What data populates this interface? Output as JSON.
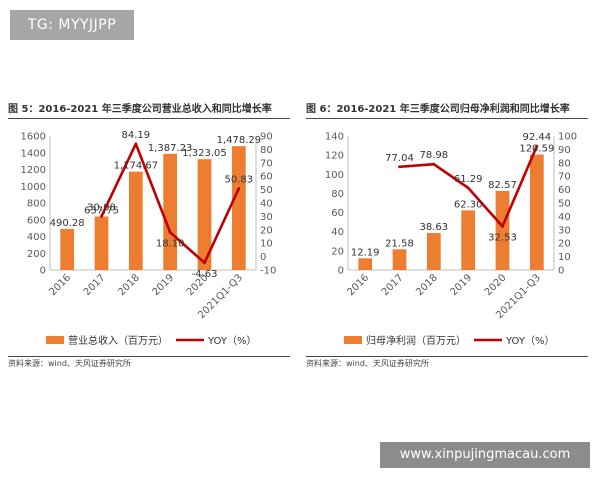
{
  "watermark_top": "TG: MYYJJPP",
  "watermark_bottom": "www.xinpujingmacau.com",
  "colors": {
    "bar": "#ed7d31",
    "line": "#c00000",
    "axis_text": "#595959",
    "text": "#333333"
  },
  "chart_data": [
    {
      "type": "bar",
      "title": "图 5：2016-2021 年三季度公司营业总收入和同比增长率",
      "categories": [
        "2016",
        "2017",
        "2018",
        "2019",
        "2020",
        "2021Q1-Q3"
      ],
      "series": [
        {
          "name": "营业总收入（百万元）",
          "type": "bar",
          "axis": "left",
          "values": [
            490.28,
            637.75,
            1174.67,
            1387.23,
            1323.05,
            1478.29
          ],
          "labels": [
            "490.28",
            "637.75",
            "1,174.67",
            "1,387.23",
            "1,323.05",
            "1,478.29"
          ]
        },
        {
          "name": "YOY（%）",
          "type": "line",
          "axis": "right",
          "values": [
            null,
            30.08,
            84.19,
            18.1,
            -4.63,
            50.83
          ],
          "labels": [
            "",
            "30.08",
            "84.19",
            "18.10",
            "-4.63",
            "50.83"
          ]
        }
      ],
      "ylim_left": [
        0,
        1600
      ],
      "yticks_left": [
        "0",
        "200",
        "400",
        "600",
        "800",
        "1000",
        "1200",
        "1400",
        "1600"
      ],
      "ylim_right": [
        -10,
        90
      ],
      "yticks_right": [
        "-10",
        "0",
        "10",
        "20",
        "30",
        "40",
        "50",
        "60",
        "70",
        "80",
        "90"
      ],
      "source": "资料来源：wind、天风证券研究所",
      "legend_position": "bottom"
    },
    {
      "type": "bar",
      "title": "图 6：2016-2021 年三季度公司归母净利润和同比增长率",
      "categories": [
        "2016",
        "2017",
        "2018",
        "2019",
        "2020",
        "2021Q1-Q3"
      ],
      "series": [
        {
          "name": "归母净利润（百万元）",
          "type": "bar",
          "axis": "left",
          "values": [
            12.19,
            21.58,
            38.63,
            62.3,
            82.57,
            120.59
          ],
          "labels": [
            "12.19",
            "21.58",
            "38.63",
            "62.30",
            "82.57",
            "120.59"
          ]
        },
        {
          "name": "YOY（%）",
          "type": "line",
          "axis": "right",
          "values": [
            null,
            77.04,
            78.98,
            61.29,
            32.53,
            92.44
          ],
          "labels": [
            "",
            "77.04",
            "78.98",
            "61.29",
            "32.53",
            "92.44"
          ]
        }
      ],
      "ylim_left": [
        0,
        140
      ],
      "yticks_left": [
        "0",
        "20",
        "40",
        "60",
        "80",
        "100",
        "120",
        "140"
      ],
      "ylim_right": [
        0,
        100
      ],
      "yticks_right": [
        "0",
        "10",
        "20",
        "30",
        "40",
        "50",
        "60",
        "70",
        "80",
        "90",
        "100"
      ],
      "source": "资料来源：wind、天风证券研究所",
      "legend_position": "bottom"
    }
  ]
}
